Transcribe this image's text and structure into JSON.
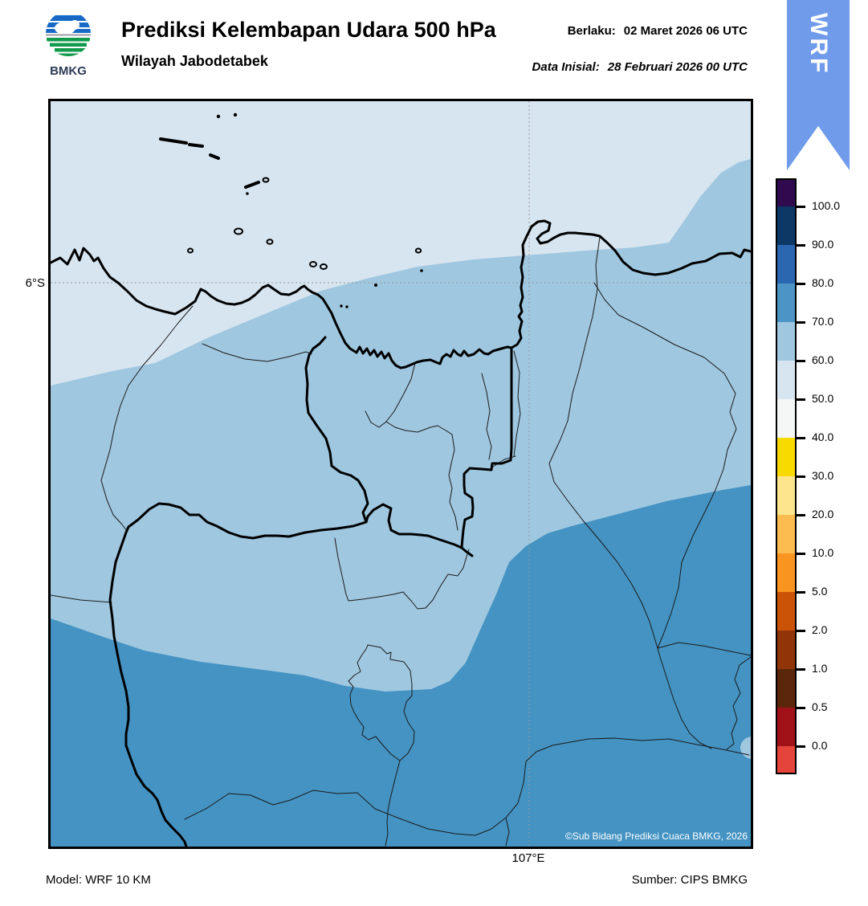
{
  "header": {
    "logo_text": "BMKG",
    "title": "Prediksi Kelembapan Udara 500 hPa",
    "subtitle": "Wilayah Jabodetabek",
    "valid_label": "Berlaku:",
    "valid_value": "02 Maret 2026 06 UTC",
    "init_label": "Data Inisial:",
    "init_value": "28 Februari 2026 00 UTC",
    "ribbon_text": "WRF",
    "ribbon_color": "#6f9bea"
  },
  "map": {
    "lat_tick": "6°S",
    "lon_tick": "107°E",
    "copyright": "©Sub Bidang Prediksi Cuaca BMKG, 2026",
    "fill_colors": {
      "band_50_60": "#d7e5f0",
      "band_60_70": "#9fc7e0",
      "band_70_80": "#4493c3"
    }
  },
  "footer": {
    "model": "Model: WRF 10 KM",
    "source": "Sumber: CIPS BMKG"
  },
  "colorbar": {
    "unit": "%",
    "tick_labels": [
      "100.0",
      "90.0",
      "80.0",
      "70.0",
      "60.0",
      "50.0",
      "40.0",
      "30.0",
      "20.0",
      "10.0",
      "5.0",
      "2.0",
      "1.0",
      "0.5",
      "0.0"
    ],
    "colors_top_to_bottom": [
      "#300a4e",
      "#0d3866",
      "#2b67b1",
      "#4b94c5",
      "#9fc7e0",
      "#d7e5f0",
      "#f5f6f6",
      "#f8da00",
      "#fce58d",
      "#fdbc4f",
      "#fa9420",
      "#cb5308",
      "#913508",
      "#5b2609",
      "#a01118",
      "#e5443a"
    ]
  }
}
